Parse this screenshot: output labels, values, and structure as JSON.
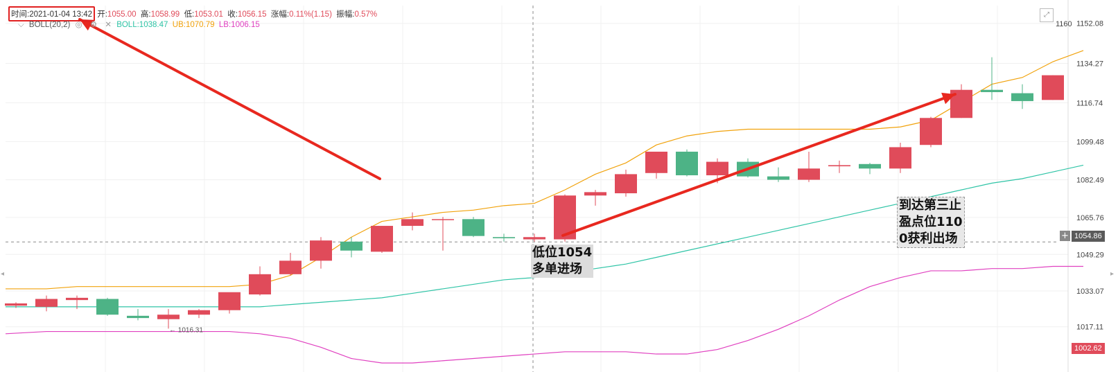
{
  "header": {
    "time_label": "时间:",
    "time": "2021-01-04 13:42",
    "open_label": "开:",
    "open": "1055.00",
    "high_label": "高:",
    "high": "1058.99",
    "low_label": "低:",
    "low": "1053.01",
    "close_label": "收:",
    "close": "1056.15",
    "change_label": "涨幅:",
    "change": "0.11%(1.15)",
    "amplitude_label": "振幅:",
    "amplitude": "0.57%"
  },
  "indicator": {
    "name": "BOLL(20,2)",
    "mid_label": "BOLL:",
    "mid": "1038.47",
    "ub_label": "UB:",
    "ub": "1070.79",
    "lb_label": "LB:",
    "lb": "1006.15"
  },
  "annotations": {
    "entry": "低位1054\n多单进场",
    "exit": "到达第三止\n盈点位110\n0获利出场",
    "low_marker": "← 1016.31"
  },
  "current_price_tag": "1054.86",
  "lower_price_tag": "1002.62",
  "top_axis_partial": "1160",
  "colors": {
    "up": "#e04b5a",
    "down": "#4db386",
    "mid": "#2ec4a6",
    "ub": "#f1a20b",
    "lb": "#e040c0",
    "arrow": "#e8281f"
  },
  "chart_data": {
    "type": "candlestick",
    "y_ticks": [
      "1152.08",
      "1134.27",
      "1116.74",
      "1099.48",
      "1082.49",
      "1065.76",
      "1049.29",
      "1033.07",
      "1017.11"
    ],
    "ylim": [
      997,
      1160
    ],
    "candles": [
      {
        "o": 1026.5,
        "h": 1028.0,
        "l": 1025.5,
        "c": 1027.5
      },
      {
        "o": 1026.0,
        "h": 1031.0,
        "l": 1024.0,
        "c": 1029.5
      },
      {
        "o": 1029.0,
        "h": 1031.0,
        "l": 1025.0,
        "c": 1030.0
      },
      {
        "o": 1029.5,
        "h": 1030.0,
        "l": 1022.0,
        "c": 1022.5
      },
      {
        "o": 1022.0,
        "h": 1025.0,
        "l": 1020.0,
        "c": 1021.0
      },
      {
        "o": 1020.5,
        "h": 1025.0,
        "l": 1016.3,
        "c": 1022.5
      },
      {
        "o": 1022.5,
        "h": 1025.0,
        "l": 1021.0,
        "c": 1024.5
      },
      {
        "o": 1024.5,
        "h": 1032.0,
        "l": 1023.0,
        "c": 1032.5
      },
      {
        "o": 1031.5,
        "h": 1044.0,
        "l": 1031.0,
        "c": 1040.5
      },
      {
        "o": 1040.5,
        "h": 1050.0,
        "l": 1040.0,
        "c": 1046.5
      },
      {
        "o": 1046.5,
        "h": 1057.0,
        "l": 1043.0,
        "c": 1055.5
      },
      {
        "o": 1055.0,
        "h": 1057.0,
        "l": 1048.0,
        "c": 1051.0
      },
      {
        "o": 1050.5,
        "h": 1062.0,
        "l": 1050.0,
        "c": 1062.0
      },
      {
        "o": 1062.0,
        "h": 1068.0,
        "l": 1060.0,
        "c": 1065.0
      },
      {
        "o": 1065.0,
        "h": 1066.0,
        "l": 1051.0,
        "c": 1065.0
      },
      {
        "o": 1065.0,
        "h": 1066.0,
        "l": 1057.0,
        "c": 1057.5
      },
      {
        "o": 1057.0,
        "h": 1058.5,
        "l": 1055.0,
        "c": 1056.5
      },
      {
        "o": 1056.0,
        "h": 1058.5,
        "l": 1055.0,
        "c": 1057.0
      },
      {
        "o": 1056.0,
        "h": 1076.0,
        "l": 1055.0,
        "c": 1075.5
      },
      {
        "o": 1075.5,
        "h": 1078.0,
        "l": 1071.0,
        "c": 1077.0
      },
      {
        "o": 1076.5,
        "h": 1087.0,
        "l": 1075.0,
        "c": 1085.0
      },
      {
        "o": 1085.5,
        "h": 1095.0,
        "l": 1083.0,
        "c": 1095.0
      },
      {
        "o": 1095.0,
        "h": 1096.0,
        "l": 1084.0,
        "c": 1084.5
      },
      {
        "o": 1084.5,
        "h": 1092.0,
        "l": 1081.0,
        "c": 1090.5
      },
      {
        "o": 1090.5,
        "h": 1092.0,
        "l": 1083.5,
        "c": 1084.0
      },
      {
        "o": 1084.0,
        "h": 1088.0,
        "l": 1081.5,
        "c": 1082.5
      },
      {
        "o": 1082.5,
        "h": 1095.0,
        "l": 1081.5,
        "c": 1087.5
      },
      {
        "o": 1088.5,
        "h": 1091.0,
        "l": 1085.5,
        "c": 1089.0
      },
      {
        "o": 1089.5,
        "h": 1090.0,
        "l": 1085.0,
        "c": 1087.5
      },
      {
        "o": 1087.5,
        "h": 1099.0,
        "l": 1085.5,
        "c": 1097.0
      },
      {
        "o": 1098.0,
        "h": 1110.5,
        "l": 1097.0,
        "c": 1110.0
      },
      {
        "o": 1110.0,
        "h": 1125.0,
        "l": 1110.0,
        "c": 1122.5
      },
      {
        "o": 1122.5,
        "h": 1137.0,
        "l": 1118.0,
        "c": 1121.5
      },
      {
        "o": 1121.0,
        "h": 1125.0,
        "l": 1114.0,
        "c": 1117.5
      },
      {
        "o": 1118.0,
        "h": 1129.0,
        "l": 1118.0,
        "c": 1129.0
      }
    ],
    "ub_line": [
      1034,
      1034,
      1035,
      1035,
      1035,
      1035,
      1035,
      1035,
      1036,
      1040,
      1048,
      1057,
      1064,
      1066,
      1068,
      1069,
      1071,
      1072,
      1078,
      1085,
      1090,
      1098,
      1102,
      1104,
      1105,
      1105,
      1105,
      1105,
      1105,
      1106,
      1109,
      1117,
      1125,
      1128,
      1135,
      1140
    ],
    "mid_line": [
      1026,
      1026,
      1026,
      1026,
      1026,
      1026,
      1026,
      1026,
      1026,
      1027,
      1028,
      1029,
      1030,
      1032,
      1034,
      1036,
      1038,
      1039,
      1041,
      1043,
      1045,
      1048,
      1051,
      1054,
      1057,
      1060,
      1063,
      1066,
      1069,
      1072,
      1075,
      1078,
      1081,
      1083,
      1086,
      1089
    ],
    "lb_line": [
      1014,
      1015,
      1015,
      1015,
      1015,
      1015,
      1015,
      1015,
      1014,
      1012,
      1008,
      1003,
      1001,
      1001,
      1002,
      1003,
      1004,
      1005,
      1006,
      1006,
      1006,
      1005,
      1005,
      1007,
      1011,
      1016,
      1022,
      1029,
      1035,
      1039,
      1042,
      1042,
      1043,
      1043,
      1044,
      1044
    ]
  }
}
